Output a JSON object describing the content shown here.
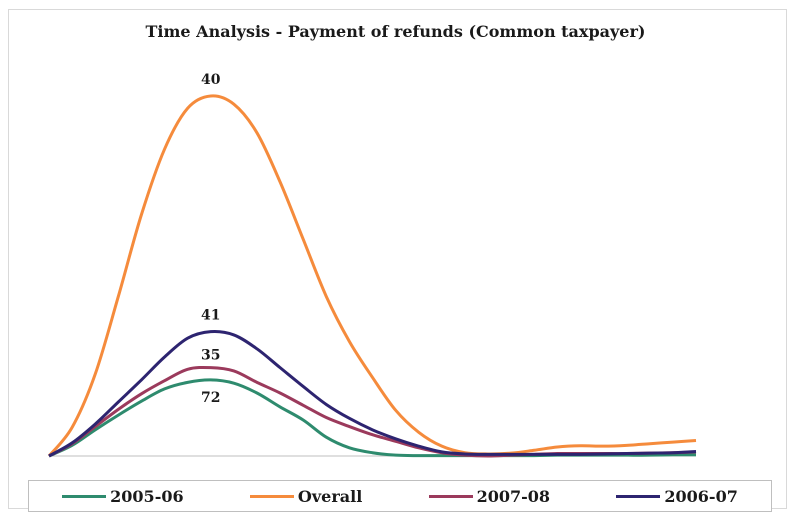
{
  "chart_data": {
    "type": "line",
    "title": "Time Analysis - Payment of refunds (Common taxpayer)",
    "xlabel": "",
    "ylabel": "",
    "x": [
      0,
      1,
      2,
      3,
      4,
      5,
      6,
      7,
      8,
      9,
      10,
      11,
      12,
      13,
      14,
      15,
      16,
      17,
      18,
      19,
      20,
      21,
      22,
      23,
      24,
      25,
      26,
      27,
      28
    ],
    "ylim": [
      0,
      44
    ],
    "grid": false,
    "legend_position": "bottom",
    "series": [
      {
        "name": "2005-06",
        "color": "#2e8b6e",
        "values": [
          0,
          1.3,
          3.2,
          5.0,
          6.7,
          8.2,
          9.0,
          9.3,
          8.9,
          7.7,
          6.0,
          4.4,
          2.3,
          1.0,
          0.4,
          0.1,
          0.05,
          0.05,
          0.05,
          0.05,
          0.05,
          0.05,
          0.1,
          0.1,
          0.1,
          0.1,
          0.1,
          0.15,
          0.15
        ]
      },
      {
        "name": "Overall",
        "color": "#f58b3c",
        "values": [
          0,
          3.5,
          10,
          19.5,
          29.5,
          37.5,
          42.5,
          44.0,
          43.0,
          39.5,
          33.5,
          26.5,
          19.5,
          14.0,
          9.6,
          5.6,
          2.9,
          1.2,
          0.4,
          0.25,
          0.35,
          0.7,
          1.1,
          1.25,
          1.2,
          1.3,
          1.5,
          1.7,
          1.9
        ]
      },
      {
        "name": "2007-08",
        "color": "#9b3a5c",
        "values": [
          0,
          1.5,
          3.6,
          5.7,
          7.6,
          9.2,
          10.6,
          10.8,
          10.4,
          9.0,
          7.7,
          6.2,
          4.7,
          3.6,
          2.6,
          1.8,
          1.0,
          0.4,
          0.1,
          0,
          0.1,
          0.2,
          0.3,
          0.3,
          0.3,
          0.3,
          0.35,
          0.4,
          0.5
        ]
      },
      {
        "name": "2006-07",
        "color": "#2d2470",
        "values": [
          0,
          1.6,
          3.9,
          6.6,
          9.3,
          12.1,
          14.4,
          15.2,
          14.8,
          13.1,
          10.8,
          8.5,
          6.3,
          4.6,
          3.2,
          2.1,
          1.2,
          0.5,
          0.25,
          0.2,
          0.2,
          0.2,
          0.2,
          0.2,
          0.25,
          0.3,
          0.35,
          0.4,
          0.55
        ]
      }
    ],
    "data_labels": [
      {
        "series": "Overall",
        "index": 7,
        "text": "40"
      },
      {
        "series": "2006-07",
        "index": 7,
        "text": "41"
      },
      {
        "series": "2007-08",
        "index": 7,
        "text": "35"
      },
      {
        "series": "2005-06",
        "index": 7,
        "text": "72"
      }
    ],
    "legend_order": [
      "2005-06",
      "Overall",
      "2007-08",
      "2006-07"
    ]
  }
}
